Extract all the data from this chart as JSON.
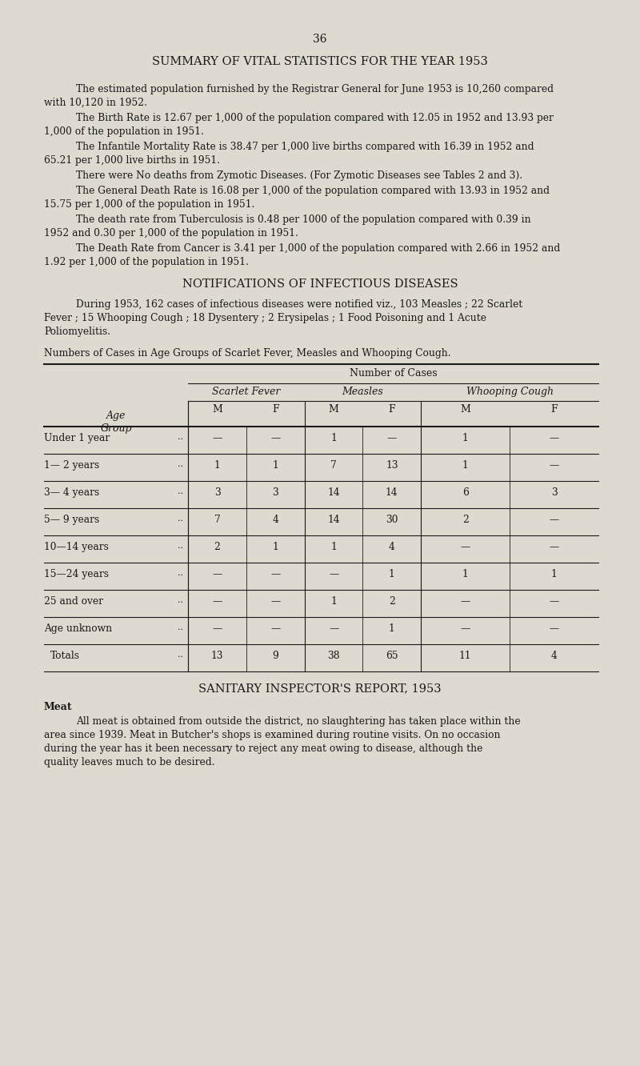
{
  "bg_color": "#dedad0",
  "text_color": "#1a1a1a",
  "page_number": "36",
  "title": "SUMMARY OF VITAL STATISTICS FOR THE YEAR 1953",
  "paragraphs": [
    "    The estimated population furnished by the Registrar General for June 1953 is 10,260 compared with 10,120 in 1952.",
    "    The Birth Rate is 12.67 per 1,000 of the population compared with 12.05 in 1952 and 13.93 per 1,000 of the population in 1951.",
    "    The Infantile Mortality Rate is 38.47 per 1,000 live births compared with 16.39 in 1952 and 65.21 per 1,000 live births in 1951.",
    "    There were No deaths from Zymotic Diseases.  (For Zymotic Diseases see Tables 2 and 3).",
    "    The General Death Rate is 16.08 per 1,000 of the population compared with 13.93 in 1952 and 15.75 per 1,000 of the population in 1951.",
    "    The death rate from Tuberculosis is 0.48 per 1000 of the population compared with 0.39 in 1952 and 0.30 per 1,000 of the population in 1951.",
    "    The Death Rate from Cancer is 3.41 per 1,000 of the population compared with 2.66 in 1952 and 1.92 per 1,000 of the population in 1951."
  ],
  "section2_title": "NOTIFICATIONS OF INFECTIOUS DISEASES",
  "section2_para": "    During 1953, 162 cases of infectious diseases were notified viz., 103 Measles ; 22 Scarlet Fever ; 15 Whooping Cough ; 18 Dysentery ; 2 Erysipelas ; 1 Food Poisoning and 1 Acute Poliomyelitis.",
  "table_caption": "Numbers of Cases in Age Groups of Scarlet Fever, Measles and Whooping Cough.",
  "table_rows": [
    [
      "Under 1 year",
      "—",
      "—",
      "1",
      "—",
      "1",
      "—"
    ],
    [
      "1— 2 years",
      "1",
      "1",
      "7",
      "13",
      "1",
      "—"
    ],
    [
      "3— 4 years",
      "3",
      "3",
      "14",
      "14",
      "6",
      "3"
    ],
    [
      "5— 9 years",
      "7",
      "4",
      "14",
      "30",
      "2",
      "—"
    ],
    [
      "10—14 years",
      "2",
      "1",
      "1",
      "4",
      "—",
      "—"
    ],
    [
      "15—24 years",
      "—",
      "—",
      "—",
      "1",
      "1",
      "1"
    ],
    [
      "25 and over",
      "—",
      "—",
      "1",
      "2",
      "—",
      "—"
    ],
    [
      "Age unknown",
      "—",
      "—",
      "—",
      "1",
      "—",
      "—"
    ],
    [
      "Totals",
      "13",
      "9",
      "38",
      "65",
      "11",
      "4"
    ]
  ],
  "section3_title": "SANITARY INSPECTOR'S REPORT, 1953",
  "section3_subtitle": "Meat",
  "section3_para": "    All meat is obtained from outside the district, no slaughtering has taken place within the area since 1939.  Meat in Butcher's shops is examined during routine visits.  On no occasion during the year has it been necessary to reject any meat owing to disease, although the quality leaves much to be desired."
}
